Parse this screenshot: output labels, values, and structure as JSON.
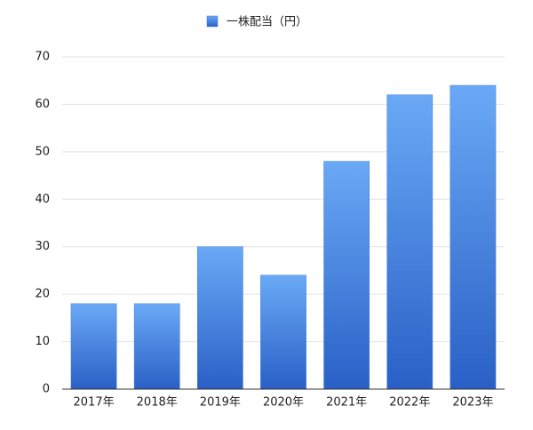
{
  "chart_data": {
    "type": "bar",
    "categories": [
      "2017年",
      "2018年",
      "2019年",
      "2020年",
      "2021年",
      "2022年",
      "2023年"
    ],
    "series": [
      {
        "name": "一株配当（円）",
        "color": "#3f7fdc",
        "values": [
          18,
          18,
          30,
          24,
          48,
          62,
          64
        ]
      }
    ],
    "ylim": [
      0,
      70
    ],
    "yticks": [
      0,
      10,
      20,
      30,
      40,
      50,
      60,
      70
    ],
    "grid": true,
    "legend": "top"
  }
}
